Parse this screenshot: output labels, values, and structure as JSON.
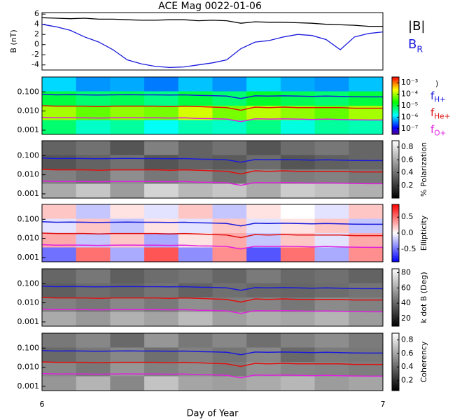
{
  "chart_data": [
    {
      "type": "line",
      "title": "ACE Mag 0022-01-06",
      "ylabel": "B (nT)",
      "xlim": [
        6,
        7
      ],
      "ylim": [
        -5,
        6.3
      ],
      "yticks": [
        -4,
        -2,
        0,
        2,
        4,
        6
      ],
      "x": [
        6.0,
        6.0417,
        6.0833,
        6.125,
        6.1667,
        6.2083,
        6.25,
        6.2917,
        6.3333,
        6.375,
        6.4167,
        6.4583,
        6.5,
        6.5417,
        6.5833,
        6.625,
        6.6667,
        6.7083,
        6.75,
        6.7917,
        6.8333,
        6.875,
        6.9167,
        6.9583,
        7.0
      ],
      "series": [
        {
          "name": "|B|",
          "color": "#000000",
          "values": [
            5.3,
            5.2,
            5.1,
            5.2,
            5.0,
            5.0,
            4.9,
            4.8,
            4.8,
            4.9,
            4.9,
            4.7,
            4.8,
            4.7,
            4.2,
            4.5,
            4.4,
            4.4,
            4.3,
            4.2,
            4.0,
            3.9,
            3.8,
            3.6,
            3.6
          ]
        },
        {
          "name": "B",
          "subscript": "R",
          "color": "#1a1adc",
          "values": [
            4.0,
            3.5,
            2.8,
            1.5,
            0.5,
            -1.0,
            -3.0,
            -3.8,
            -4.3,
            -4.5,
            -4.4,
            -4.0,
            -3.6,
            -3.0,
            -0.8,
            0.5,
            0.8,
            1.5,
            2.0,
            1.8,
            1.0,
            -1.0,
            1.5,
            2.2,
            2.5
          ]
        }
      ]
    },
    {
      "type": "spectrogram",
      "xlabel": "Day of Year",
      "xlim": [
        6,
        7
      ],
      "xticks": [
        6,
        7
      ],
      "yscale": "log",
      "ylim": [
        0.0006,
        0.6
      ],
      "yticks": [
        {
          "value": 0.1,
          "label": "0.100"
        },
        {
          "value": 0.01,
          "label": "0.010"
        },
        {
          "value": 0.001,
          "label": "0.001"
        }
      ],
      "x": [
        6.0,
        6.0417,
        6.0833,
        6.125,
        6.1667,
        6.2083,
        6.25,
        6.2917,
        6.3333,
        6.375,
        6.4167,
        6.4583,
        6.5,
        6.5417,
        6.5833,
        6.625,
        6.6667,
        6.7083,
        6.75,
        6.7917,
        6.8333,
        6.875,
        6.9167,
        6.9583,
        7.0
      ],
      "lines": [
        {
          "name": "f",
          "subscript": "H+",
          "color": "#1a1adc",
          "values": [
            0.075,
            0.07,
            0.072,
            0.07,
            0.068,
            0.07,
            0.072,
            0.07,
            0.07,
            0.068,
            0.07,
            0.066,
            0.064,
            0.06,
            0.045,
            0.062,
            0.06,
            0.062,
            0.06,
            0.058,
            0.06,
            0.058,
            0.056,
            0.055,
            0.055
          ]
        },
        {
          "name": "f",
          "subscript": "He+",
          "color": "#e01010",
          "values": [
            0.019,
            0.018,
            0.018,
            0.018,
            0.017,
            0.018,
            0.018,
            0.018,
            0.018,
            0.017,
            0.018,
            0.017,
            0.016,
            0.015,
            0.011,
            0.016,
            0.015,
            0.016,
            0.015,
            0.015,
            0.015,
            0.015,
            0.014,
            0.014,
            0.014
          ]
        },
        {
          "name": "f",
          "subscript": "O+",
          "color": "#e020e0",
          "values": [
            0.0047,
            0.0044,
            0.0045,
            0.0044,
            0.0043,
            0.0044,
            0.0045,
            0.0044,
            0.0044,
            0.0043,
            0.0044,
            0.0041,
            0.004,
            0.0038,
            0.0028,
            0.0039,
            0.0038,
            0.0039,
            0.0038,
            0.0036,
            0.0038,
            0.0036,
            0.0035,
            0.0034,
            0.0034
          ]
        }
      ],
      "panels": [
        {
          "colormap": "rainbow",
          "colorbar_label": ")",
          "clim": [
            -7.5,
            -2.5
          ],
          "cticks": [
            {
              "value": -3,
              "label": "10⁻³"
            },
            {
              "value": -4,
              "label": "10⁻⁴"
            },
            {
              "value": -5,
              "label": "10⁻⁵"
            },
            {
              "value": -6,
              "label": "10⁻⁶"
            },
            {
              "value": -7,
              "label": "10⁻⁷"
            }
          ],
          "z": [
            [
              -6.0,
              -6.3,
              -6.2,
              -6.4,
              -6.1,
              -6.3,
              -6.0,
              -6.2,
              -6.3,
              -6.1
            ],
            [
              -5.0,
              -5.2,
              -5.1,
              -5.3,
              -5.0,
              -5.2,
              -4.9,
              -5.1,
              -5.2,
              -5.0
            ],
            [
              -4.0,
              -4.3,
              -4.1,
              -4.2,
              -3.8,
              -4.2,
              -3.9,
              -4.1,
              -4.3,
              -4.0
            ],
            [
              -5.2,
              -5.6,
              -5.4,
              -5.8,
              -5.5,
              -5.6,
              -5.3,
              -5.7,
              -5.4,
              -5.5
            ]
          ]
        },
        {
          "colormap": "gray",
          "colorbar_label": "% Polarization",
          "clim": [
            0,
            0.9
          ],
          "cticks": [
            0.2,
            0.4,
            0.6,
            0.8
          ],
          "z": [
            [
              0.35,
              0.4,
              0.3,
              0.45,
              0.35,
              0.4,
              0.3,
              0.38,
              0.42,
              0.36
            ],
            [
              0.3,
              0.35,
              0.4,
              0.3,
              0.35,
              0.32,
              0.38,
              0.3,
              0.34,
              0.36
            ],
            [
              0.45,
              0.4,
              0.5,
              0.42,
              0.48,
              0.4,
              0.5,
              0.44,
              0.46,
              0.42
            ],
            [
              0.6,
              0.7,
              0.55,
              0.75,
              0.65,
              0.7,
              0.6,
              0.72,
              0.68,
              0.62
            ]
          ]
        },
        {
          "colormap": "bwr",
          "colorbar_label": "Ellipticity",
          "clim": [
            -0.9,
            0.9
          ],
          "cticks": [
            {
              "value": -0.5,
              "label": "-0.5"
            },
            {
              "value": 0,
              "label": "0.0"
            },
            {
              "value": 0.5,
              "label": "0.5"
            }
          ],
          "z": [
            [
              0.2,
              -0.2,
              0.1,
              -0.1,
              0.2,
              -0.2,
              0.1,
              0.0,
              -0.1,
              0.2
            ],
            [
              -0.1,
              0.2,
              -0.2,
              0.1,
              -0.1,
              0.2,
              -0.1,
              0.1,
              0.2,
              -0.2
            ],
            [
              0.3,
              -0.2,
              0.2,
              -0.3,
              0.1,
              0.3,
              -0.2,
              0.2,
              -0.1,
              0.3
            ],
            [
              -0.5,
              0.5,
              -0.3,
              0.6,
              -0.4,
              0.4,
              -0.6,
              0.5,
              -0.3,
              0.4
            ]
          ]
        },
        {
          "colormap": "gray",
          "colorbar_label": "k dot B (Deg)",
          "clim": [
            10,
            85
          ],
          "cticks": [
            20,
            40,
            60,
            80
          ],
          "z": [
            [
              40,
              45,
              38,
              42,
              44,
              40,
              46,
              41,
              43,
              39
            ],
            [
              38,
              42,
              40,
              44,
              39,
              43,
              41,
              40,
              42,
              44
            ],
            [
              48,
              45,
              50,
              46,
              52,
              47,
              49,
              45,
              51,
              48
            ],
            [
              60,
              55,
              62,
              58,
              65,
              57,
              61,
              59,
              63,
              56
            ]
          ]
        },
        {
          "colormap": "gray",
          "colorbar_label": "Coherency",
          "clim": [
            0.05,
            0.9
          ],
          "cticks": [
            0.2,
            0.4,
            0.6,
            0.8
          ],
          "z": [
            [
              0.45,
              0.5,
              0.4,
              0.55,
              0.45,
              0.5,
              0.42,
              0.48,
              0.52,
              0.46
            ],
            [
              0.4,
              0.45,
              0.5,
              0.42,
              0.48,
              0.44,
              0.5,
              0.4,
              0.46,
              0.45
            ],
            [
              0.5,
              0.45,
              0.55,
              0.48,
              0.52,
              0.46,
              0.54,
              0.5,
              0.49,
              0.47
            ],
            [
              0.55,
              0.65,
              0.5,
              0.7,
              0.6,
              0.58,
              0.62,
              0.66,
              0.57,
              0.6
            ]
          ]
        }
      ]
    }
  ]
}
